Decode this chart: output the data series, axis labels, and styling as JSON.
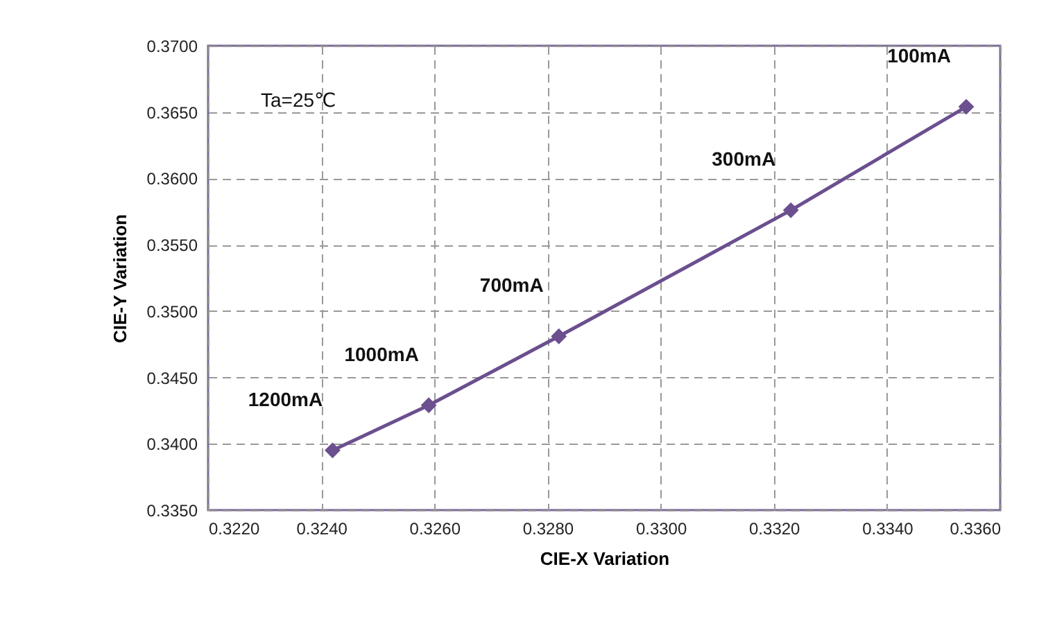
{
  "chart_data": {
    "type": "line",
    "xlabel": "CIE-X Variation",
    "ylabel": "CIE-Y  Variation",
    "x": [
      0.3242,
      0.3259,
      0.3282,
      0.3323,
      0.3354
    ],
    "series": [
      {
        "color": "#6b4f8f",
        "values": [
          0.3395,
          0.3429,
          0.3481,
          0.3576,
          0.3654
        ]
      }
    ],
    "marker": "diamond",
    "line_style": "solid",
    "grid": true,
    "xlim": [
      0.322,
      0.336
    ],
    "xticks": [
      {
        "value": 0.322,
        "label": "0.3220"
      },
      {
        "value": 0.324,
        "label": "0.3240"
      },
      {
        "value": 0.326,
        "label": "0.3260"
      },
      {
        "value": 0.328,
        "label": "0.3280"
      },
      {
        "value": 0.33,
        "label": "0.3300"
      },
      {
        "value": 0.332,
        "label": "0.3320"
      },
      {
        "value": 0.334,
        "label": "0.3340"
      },
      {
        "value": 0.336,
        "label": "0.3360"
      }
    ],
    "ylim": [
      0.335,
      0.37
    ],
    "yticks": [
      {
        "value": 0.335,
        "label": "0.3350"
      },
      {
        "value": 0.34,
        "label": "0.3400"
      },
      {
        "value": 0.345,
        "label": "0.3450"
      },
      {
        "value": 0.35,
        "label": "0.3500"
      },
      {
        "value": 0.355,
        "label": "0.3550"
      },
      {
        "value": 0.36,
        "label": "0.3600"
      },
      {
        "value": 0.365,
        "label": "0.3650"
      },
      {
        "value": 0.37,
        "label": "0.3700"
      }
    ],
    "annotations": [
      {
        "text": "1200mA",
        "x": 0.3242,
        "y": 0.3395
      },
      {
        "text": "1000mA",
        "x": 0.3259,
        "y": 0.3429
      },
      {
        "text": "700mA",
        "x": 0.3282,
        "y": 0.3481
      },
      {
        "text": "300mA",
        "x": 0.3323,
        "y": 0.3576
      },
      {
        "text": "100mA",
        "x": 0.3354,
        "y": 0.3654
      },
      "Ta=25℃"
    ]
  }
}
